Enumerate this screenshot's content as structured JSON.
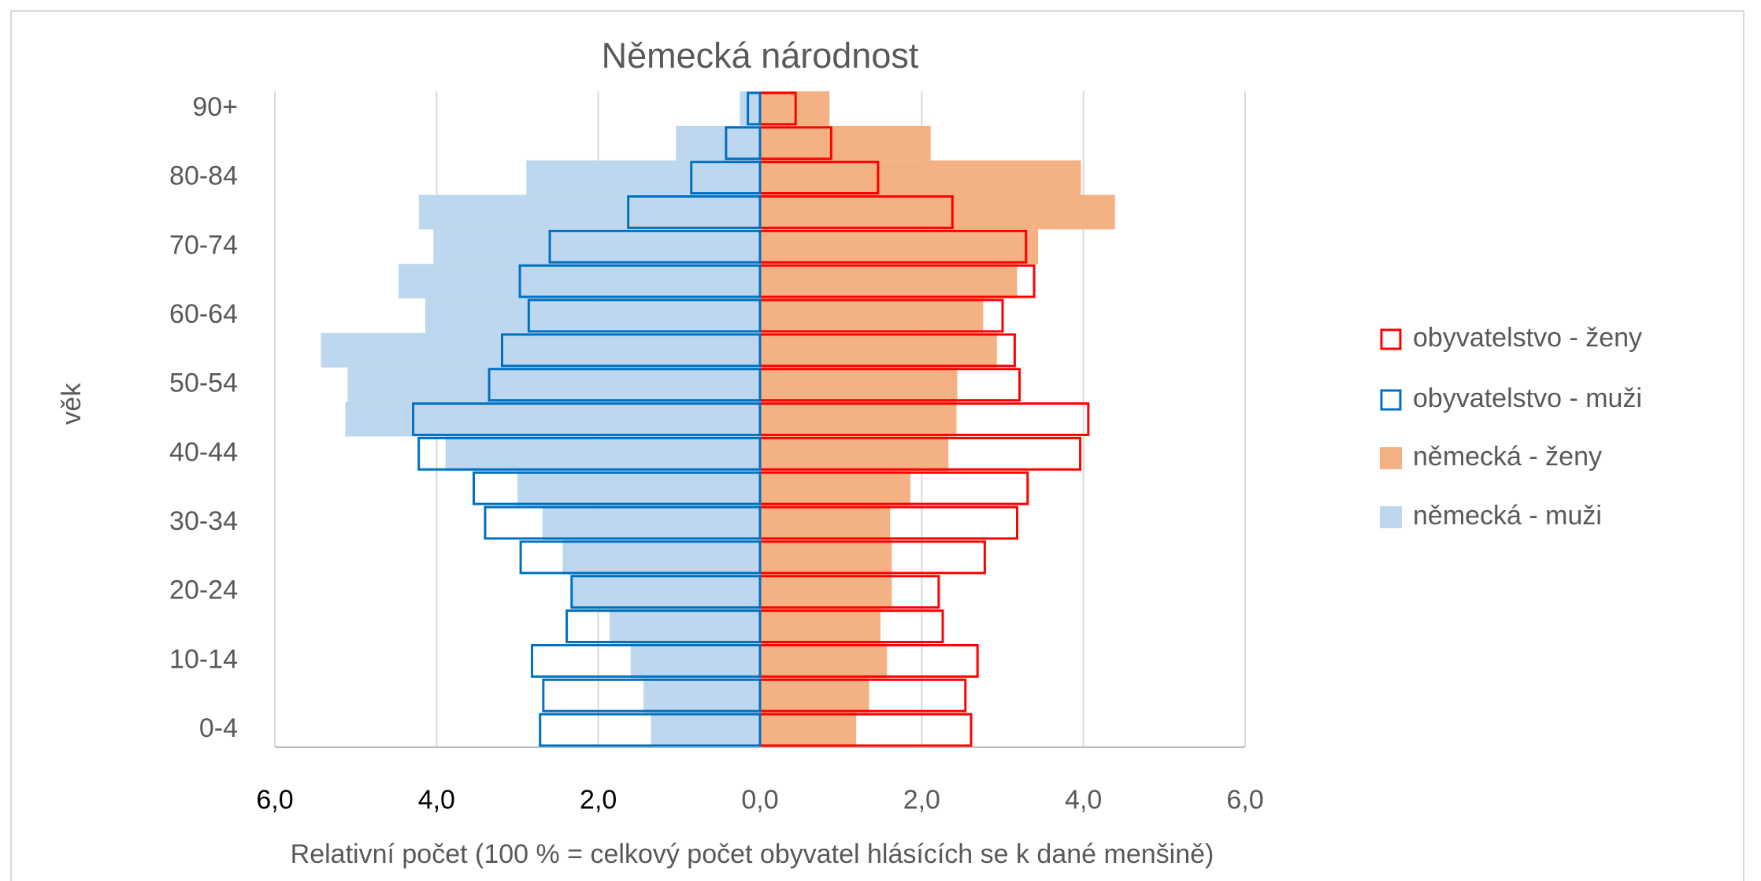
{
  "chart_data": {
    "type": "pyramid",
    "title": "Německá národnost",
    "xlabel": "Relativní počet (100 % = celkový počet obyvatel hlásících se k dané menšině)",
    "ylabel": "věk",
    "categories": [
      "0-4",
      null,
      "10-14",
      null,
      "20-24",
      null,
      "30-34",
      null,
      "40-44",
      null,
      "50-54",
      null,
      "60-64",
      null,
      "70-74",
      null,
      "80-84",
      null,
      "90+"
    ],
    "xlim": [
      -6,
      6
    ],
    "xticks": [
      {
        "value": -6,
        "label": "6,0"
      },
      {
        "value": -4,
        "label": "4,0"
      },
      {
        "value": -2,
        "label": "2,0"
      },
      {
        "value": 0,
        "label": "0,0"
      },
      {
        "value": 2,
        "label": "2,0"
      },
      {
        "value": 4,
        "label": "4,0"
      },
      {
        "value": 6,
        "label": "6,0"
      }
    ],
    "grid": true,
    "legend": "right",
    "series": [
      {
        "name": "obyvatelstvo - ženy",
        "color": "#ff0000",
        "style": "outline",
        "values": [
          2.61,
          2.54,
          2.69,
          2.26,
          2.21,
          2.78,
          3.18,
          3.31,
          3.96,
          4.06,
          3.21,
          3.15,
          3.0,
          3.39,
          3.29,
          2.38,
          1.46,
          0.88,
          0.44
        ]
      },
      {
        "name": "obyvatelstvo - muži",
        "color": "#0070c0",
        "style": "outline",
        "values": [
          -2.72,
          -2.68,
          -2.82,
          -2.39,
          -2.33,
          -2.96,
          -3.4,
          -3.54,
          -4.22,
          -4.29,
          -3.35,
          -3.19,
          -2.86,
          -2.97,
          -2.6,
          -1.63,
          -0.85,
          -0.42,
          -0.15
        ]
      },
      {
        "name": "německá - ženy",
        "color": "#f4b183",
        "style": "fill",
        "values": [
          1.19,
          1.35,
          1.57,
          1.49,
          1.63,
          1.63,
          1.61,
          1.86,
          2.33,
          2.43,
          2.44,
          2.93,
          2.76,
          3.18,
          3.44,
          4.39,
          3.97,
          2.11,
          0.86
        ]
      },
      {
        "name": "německá - muži",
        "color": "#bdd7ee",
        "style": "fill",
        "values": [
          -1.35,
          -1.44,
          -1.6,
          -1.86,
          -2.33,
          -2.44,
          -2.69,
          -3.0,
          -3.89,
          -5.13,
          -5.1,
          -5.43,
          -4.14,
          -4.47,
          -4.04,
          -4.22,
          -2.89,
          -1.04,
          -0.25
        ]
      }
    ]
  }
}
